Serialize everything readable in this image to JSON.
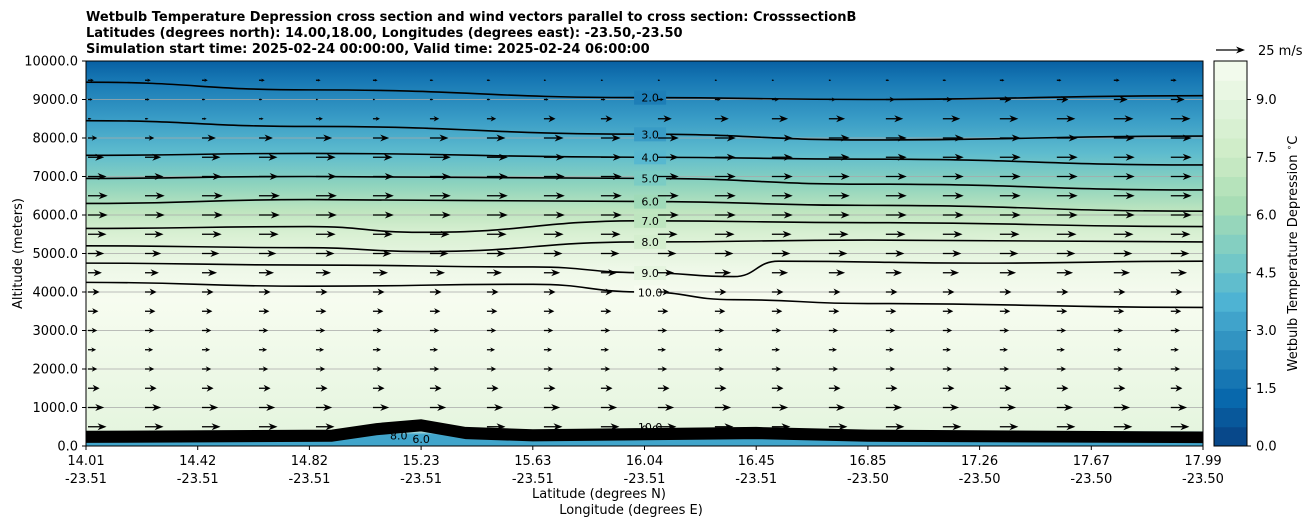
{
  "chart_data": {
    "type": "heatmap",
    "title_lines": [
      "Wetbulb Temperature Depression cross section and wind vectors parallel to cross section: CrosssectionB",
      "Latitudes (degrees north): 14.00,18.00, Longitudes (degrees east): -23.50,-23.50",
      "Simulation start time: 2025-02-24 00:00:00, Valid time: 2025-02-24 06:00:00"
    ],
    "ylabel": "Altitude (meters)",
    "xlabel_lat": "Latitude (degrees N)",
    "xlabel_lon": "Longitude (degrees E)",
    "ylim": [
      0,
      10000
    ],
    "y_ticks": [
      "0.0",
      "1000.0",
      "2000.0",
      "3000.0",
      "4000.0",
      "5000.0",
      "6000.0",
      "7000.0",
      "8000.0",
      "9000.0",
      "10000.0"
    ],
    "x_ticks": [
      {
        "lat": "14.01",
        "lon": "-23.51"
      },
      {
        "lat": "14.42",
        "lon": "-23.51"
      },
      {
        "lat": "14.82",
        "lon": "-23.51"
      },
      {
        "lat": "15.23",
        "lon": "-23.51"
      },
      {
        "lat": "15.63",
        "lon": "-23.51"
      },
      {
        "lat": "16.04",
        "lon": "-23.51"
      },
      {
        "lat": "16.45",
        "lon": "-23.51"
      },
      {
        "lat": "16.85",
        "lon": "-23.50"
      },
      {
        "lat": "17.26",
        "lon": "-23.50"
      },
      {
        "lat": "17.67",
        "lon": "-23.50"
      },
      {
        "lat": "17.99",
        "lon": "-23.50"
      }
    ],
    "colorbar": {
      "label": "Wetbulb Temperature Depression $^\\circ$C",
      "min": 0,
      "max": 10,
      "ticks": [
        "0.0",
        "1.5",
        "3.0",
        "4.5",
        "6.0",
        "7.5",
        "9.0"
      ],
      "colormap": "GnBu_r",
      "colors": [
        "#084081",
        "#0868ac",
        "#2b8cbe",
        "#4eb3d3",
        "#7bccc4",
        "#a8ddb5",
        "#ccebc5",
        "#e0f3db",
        "#f7fcf0"
      ]
    },
    "contour_levels": [
      "2.0",
      "3.0",
      "4.0",
      "5.0",
      "6.0",
      "7.0",
      "8.0",
      "9.0",
      "10.0"
    ],
    "contours": [
      {
        "level": 2,
        "label": "2.0",
        "x": [
          0,
          0.2,
          0.5,
          0.7,
          1.0
        ],
        "y": [
          9450,
          9250,
          9050,
          9000,
          9100
        ]
      },
      {
        "level": 3,
        "label": "3.0",
        "x": [
          0,
          0.2,
          0.5,
          0.7,
          1.0
        ],
        "y": [
          8450,
          8300,
          8100,
          7950,
          8050
        ]
      },
      {
        "level": 4,
        "label": "4.0",
        "x": [
          0,
          0.2,
          0.5,
          0.7,
          1.0
        ],
        "y": [
          7550,
          7600,
          7500,
          7450,
          7300
        ]
      },
      {
        "level": 5,
        "label": "5.0",
        "x": [
          0,
          0.2,
          0.5,
          0.7,
          1.0
        ],
        "y": [
          6950,
          7000,
          6950,
          6800,
          6650
        ]
      },
      {
        "level": 6,
        "label": "6.0",
        "x": [
          0,
          0.2,
          0.5,
          0.7,
          1.0
        ],
        "y": [
          6300,
          6400,
          6350,
          6250,
          6100
        ]
      },
      {
        "level": 7,
        "label": "7.0",
        "x": [
          0,
          0.2,
          0.3,
          0.5,
          0.7,
          1.0
        ],
        "y": [
          5650,
          5700,
          5550,
          5850,
          5800,
          5700
        ]
      },
      {
        "level": 8,
        "label": "8.0",
        "x": [
          0,
          0.2,
          0.3,
          0.5,
          0.7,
          1.0
        ],
        "y": [
          5200,
          5150,
          5050,
          5300,
          5350,
          5300
        ]
      },
      {
        "level": 9,
        "label": "9.0",
        "x": [
          0,
          0.2,
          0.4,
          0.5,
          0.58,
          0.62,
          0.8,
          1.0
        ],
        "y": [
          4750,
          4700,
          4650,
          4500,
          4400,
          4800,
          4750,
          4800
        ]
      },
      {
        "level": 10,
        "label": "10.0",
        "x": [
          0,
          0.2,
          0.4,
          0.5,
          0.58,
          0.7,
          1.0
        ],
        "y": [
          4250,
          4150,
          4200,
          4000,
          3800,
          3700,
          3600
        ]
      }
    ],
    "low_contour_labels": [
      "10.0",
      "9.0",
      "8.0",
      "6.0",
      "4.0",
      "8.0",
      "6.0"
    ],
    "profile_temperature": [
      {
        "alt": 0,
        "value": 3.5
      },
      {
        "alt": 300,
        "value": 3.5
      },
      {
        "alt": 400,
        "value": 9.0
      },
      {
        "alt": 3800,
        "value": 10.0
      },
      {
        "alt": 4600,
        "value": 9.5
      },
      {
        "alt": 5500,
        "value": 8.3
      },
      {
        "alt": 6100,
        "value": 7.0
      },
      {
        "alt": 6800,
        "value": 5.5
      },
      {
        "alt": 7600,
        "value": 4.2
      },
      {
        "alt": 8500,
        "value": 3.0
      },
      {
        "alt": 9500,
        "value": 1.8
      },
      {
        "alt": 10000,
        "value": 1.0
      }
    ],
    "wind_vectors": {
      "reference_label": "25 m/s",
      "reference_speed": 25,
      "levels": [
        {
          "alt": 9500,
          "speed": [
            5,
            5,
            4,
            3,
            2,
            2,
            2,
            3,
            4,
            5
          ]
        },
        {
          "alt": 9000,
          "speed": [
            4,
            3,
            2,
            3,
            4,
            5,
            6,
            8,
            10,
            12
          ]
        },
        {
          "alt": 8500,
          "speed": [
            3,
            4,
            6,
            8,
            10,
            12,
            14,
            15,
            16,
            17
          ]
        },
        {
          "alt": 8000,
          "speed": [
            8,
            12,
            14,
            16,
            17,
            18,
            18,
            18,
            18,
            18
          ]
        },
        {
          "alt": 7500,
          "speed": [
            14,
            16,
            17,
            18,
            18,
            18,
            18,
            18,
            18,
            18
          ]
        },
        {
          "alt": 7000,
          "speed": [
            16,
            17,
            18,
            18,
            18,
            18,
            18,
            18,
            18,
            18
          ]
        },
        {
          "alt": 6500,
          "speed": [
            17,
            18,
            18,
            18,
            18,
            18,
            18,
            18,
            18,
            18
          ]
        },
        {
          "alt": 6000,
          "speed": [
            17,
            18,
            18,
            18,
            18,
            18,
            18,
            18,
            18,
            18
          ]
        },
        {
          "alt": 5500,
          "speed": [
            16,
            17,
            17,
            17,
            17,
            17,
            17,
            17,
            17,
            17
          ]
        },
        {
          "alt": 5000,
          "speed": [
            14,
            15,
            16,
            16,
            16,
            16,
            16,
            16,
            16,
            16
          ]
        },
        {
          "alt": 4500,
          "speed": [
            12,
            13,
            13,
            13,
            14,
            14,
            14,
            14,
            14,
            14
          ]
        },
        {
          "alt": 4000,
          "speed": [
            10,
            10,
            10,
            10,
            10,
            10,
            10,
            10,
            10,
            10
          ]
        },
        {
          "alt": 3500,
          "speed": [
            9,
            9,
            9,
            9,
            9,
            9,
            9,
            9,
            9,
            9
          ]
        },
        {
          "alt": 3000,
          "speed": [
            8,
            8,
            8,
            8,
            8,
            8,
            8,
            8,
            8,
            8
          ]
        },
        {
          "alt": 2500,
          "speed": [
            7,
            7,
            7,
            7,
            7,
            7,
            7,
            7,
            7,
            7
          ]
        },
        {
          "alt": 2000,
          "speed": [
            8,
            8,
            8,
            8,
            8,
            8,
            8,
            8,
            8,
            8
          ]
        },
        {
          "alt": 1500,
          "speed": [
            10,
            10,
            10,
            10,
            10,
            10,
            10,
            10,
            10,
            10
          ]
        },
        {
          "alt": 1000,
          "speed": [
            14,
            14,
            14,
            14,
            14,
            14,
            14,
            14,
            14,
            14
          ]
        },
        {
          "alt": 500,
          "speed": [
            16,
            16,
            16,
            16,
            16,
            16,
            16,
            16,
            16,
            16
          ]
        }
      ]
    },
    "grid": true,
    "legend": "none"
  }
}
